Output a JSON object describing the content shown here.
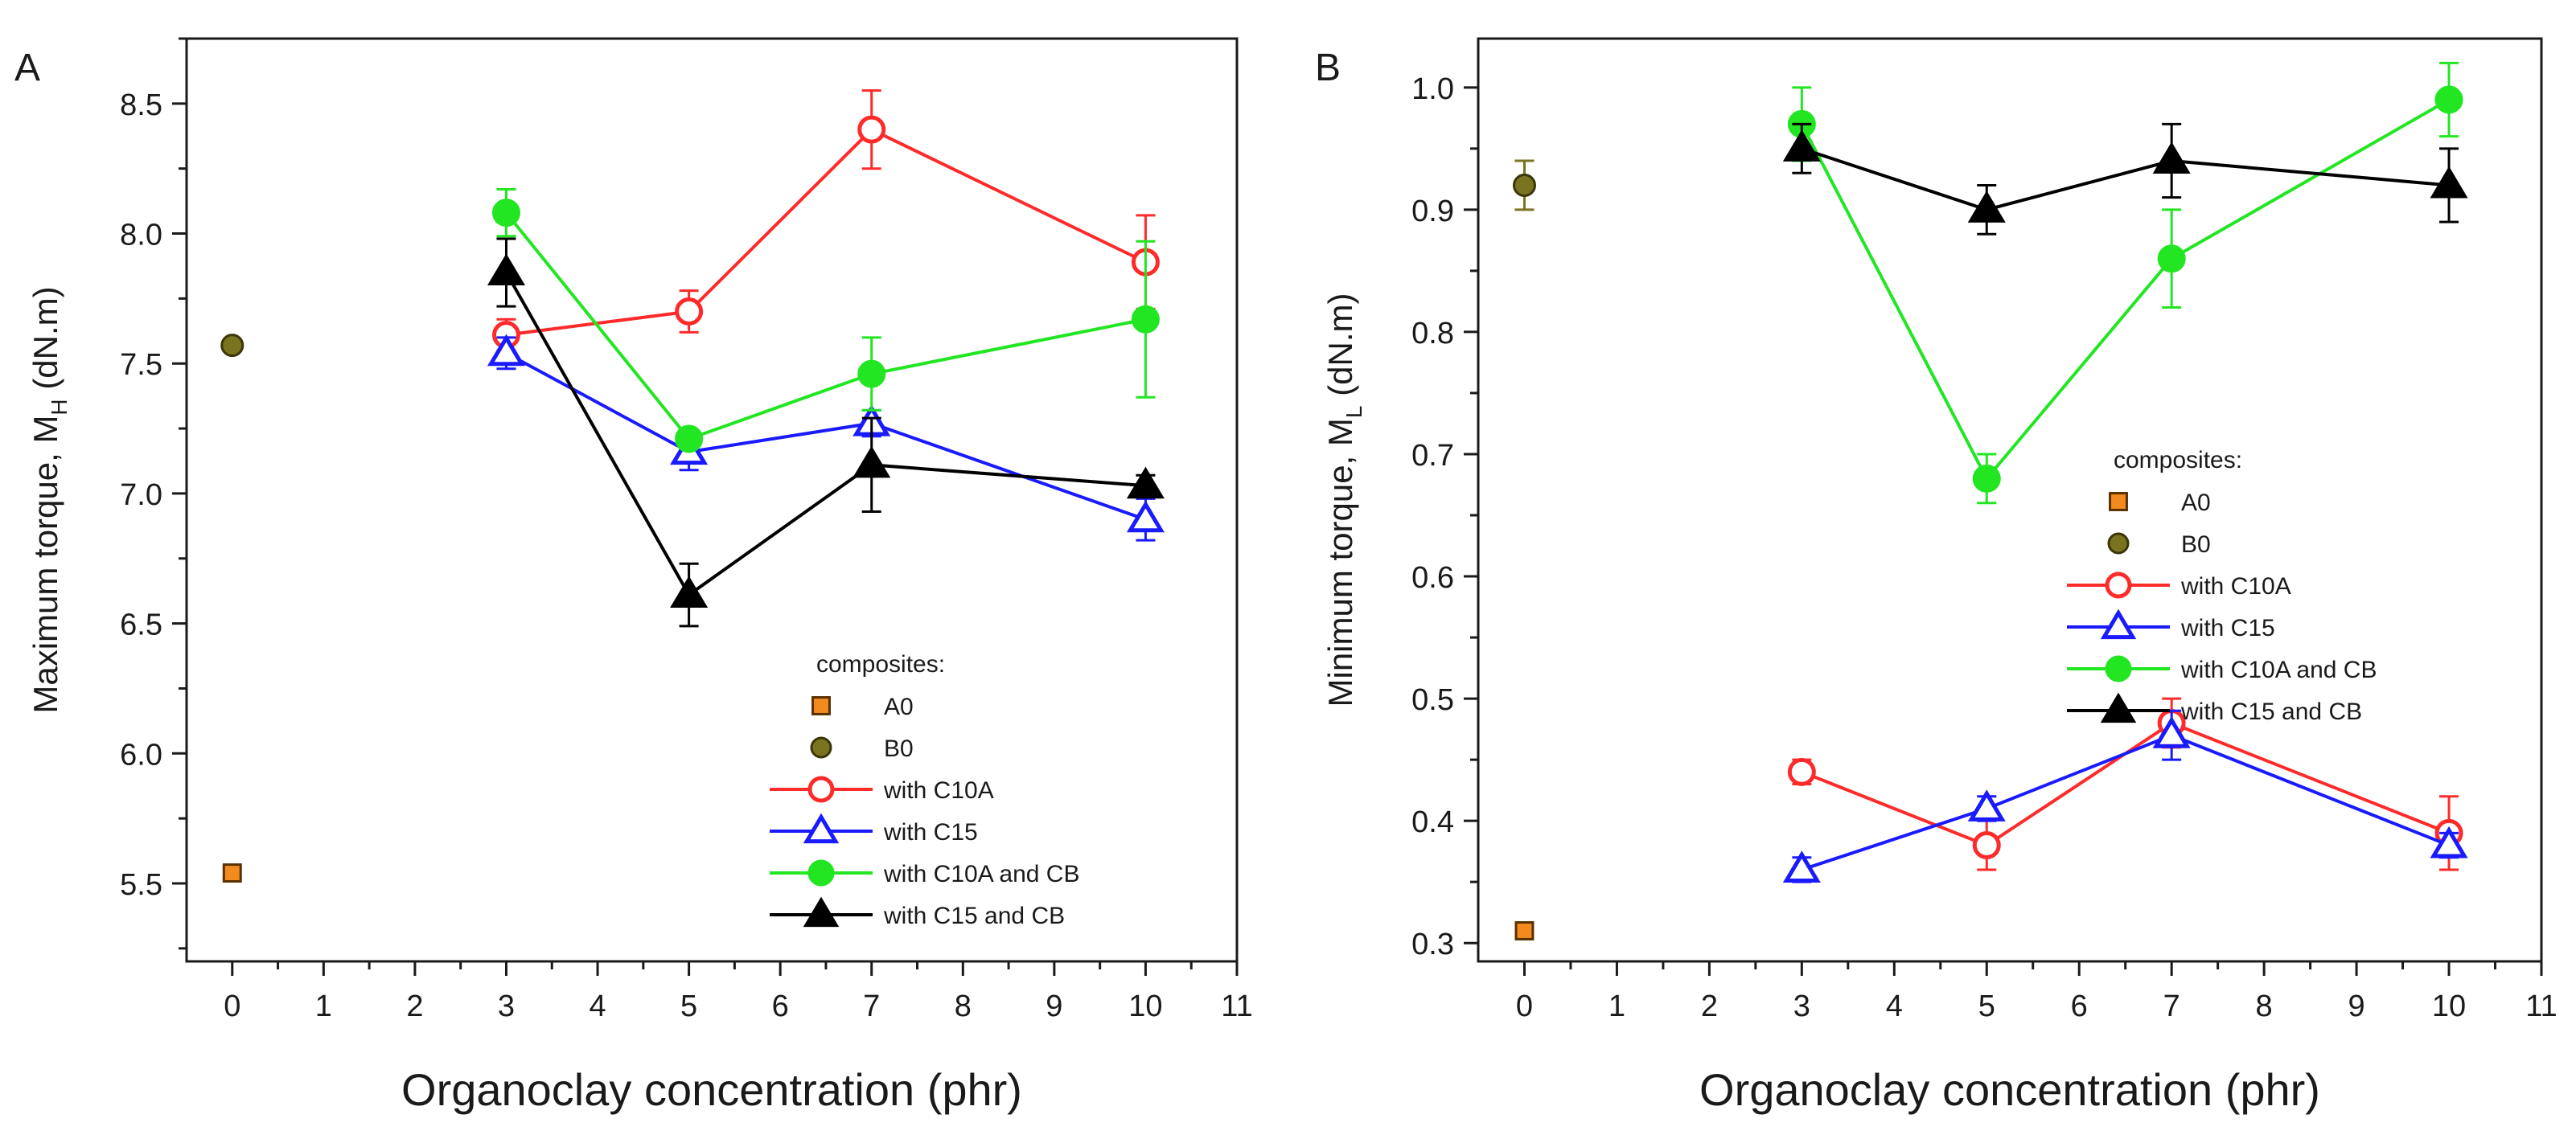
{
  "figure": {
    "description_free": true
  },
  "styles": {
    "A0": {
      "color": "#f28a1e",
      "edge": "#5a3000",
      "marker": "square",
      "filled": true
    },
    "B0": {
      "color": "#7a7420",
      "edge": "#3a3608",
      "marker": "circle",
      "filled": true
    },
    "with C10A": {
      "color": "#ff2a2a",
      "marker": "circle",
      "filled": false
    },
    "with C15": {
      "color": "#1a1aff",
      "marker": "triangle",
      "filled": false
    },
    "with C10A and CB": {
      "color": "#22e622",
      "marker": "circle",
      "filled": true
    },
    "with C15 and CB": {
      "color": "#000000",
      "marker": "triangle",
      "filled": true
    }
  },
  "chart_data": [
    {
      "panel_letter": "A",
      "type": "line",
      "xlabel": "Organoclay concentration (phr)",
      "ylabel_main": "Maximum torque, M",
      "ylabel_sub": "H",
      "ylabel_unit": " (dN.m)",
      "xlim": [
        -0.5,
        11
      ],
      "ylim": [
        5.2,
        8.75
      ],
      "xticks": [
        0,
        1,
        2,
        3,
        4,
        5,
        6,
        7,
        8,
        9,
        10,
        11
      ],
      "xtick_labels": [
        "0",
        "1",
        "2",
        "3",
        "4",
        "5",
        "6",
        "7",
        "8",
        "9",
        "10",
        "11"
      ],
      "yticks": [
        5.5,
        6.0,
        6.5,
        7.0,
        7.5,
        8.0,
        8.5
      ],
      "ytick_labels": [
        "5.5",
        "6.0",
        "6.5",
        "7.0",
        "7.5",
        "8.0",
        "8.5"
      ],
      "legend": {
        "title": "composites:",
        "entries": [
          "A0",
          "B0",
          "with C10A",
          "with C15",
          "with C10A and CB",
          "with C15 and CB"
        ],
        "placement": "bottom-right"
      },
      "series": [
        {
          "name": "A0",
          "x": [
            0
          ],
          "y": [
            5.54
          ],
          "err": [
            0.02
          ]
        },
        {
          "name": "B0",
          "x": [
            0
          ],
          "y": [
            7.57
          ],
          "err": [
            0
          ]
        },
        {
          "name": "with C10A",
          "x": [
            3,
            5,
            7,
            10
          ],
          "y": [
            7.61,
            7.7,
            8.4,
            7.89
          ],
          "err": [
            0.06,
            0.08,
            0.15,
            0.18
          ]
        },
        {
          "name": "with C15",
          "x": [
            3,
            5,
            7,
            10
          ],
          "y": [
            7.54,
            7.16,
            7.27,
            6.9
          ],
          "err": [
            0.06,
            0.07,
            0.05,
            0.08
          ]
        },
        {
          "name": "with C10A and CB",
          "x": [
            3,
            5,
            7,
            10
          ],
          "y": [
            8.08,
            7.21,
            7.46,
            7.67
          ],
          "err": [
            0.09,
            0.02,
            0.14,
            0.3
          ]
        },
        {
          "name": "with C15 and CB",
          "x": [
            3,
            5,
            7,
            10
          ],
          "y": [
            7.85,
            6.61,
            7.11,
            7.03
          ],
          "err": [
            0.13,
            0.12,
            0.18,
            0.04
          ]
        }
      ]
    },
    {
      "panel_letter": "B",
      "type": "line",
      "xlabel": "Organoclay concentration (phr)",
      "ylabel_main": "Minimum torque, M",
      "ylabel_sub": "L",
      "ylabel_unit": " (dN.m)",
      "xlim": [
        -0.5,
        11
      ],
      "ylim": [
        0.285,
        1.04
      ],
      "xticks": [
        0,
        1,
        2,
        3,
        4,
        5,
        6,
        7,
        8,
        9,
        10,
        11
      ],
      "xtick_labels": [
        "0",
        "1",
        "2",
        "3",
        "4",
        "5",
        "6",
        "7",
        "8",
        "9",
        "10",
        "11"
      ],
      "yticks": [
        0.3,
        0.4,
        0.5,
        0.6,
        0.7,
        0.8,
        0.9,
        1.0
      ],
      "ytick_labels": [
        "0.3",
        "0.4",
        "0.5",
        "0.6",
        "0.7",
        "0.8",
        "0.9",
        "1.0"
      ],
      "legend": {
        "title": "composites:",
        "entries": [
          "A0",
          "B0",
          "with C10A",
          "with C15",
          "with C10A and CB",
          "with C15 and CB"
        ],
        "placement": "center-right"
      },
      "series": [
        {
          "name": "A0",
          "x": [
            0
          ],
          "y": [
            0.31
          ],
          "err": [
            0
          ]
        },
        {
          "name": "B0",
          "x": [
            0
          ],
          "y": [
            0.92
          ],
          "err": [
            0.02
          ]
        },
        {
          "name": "with C10A",
          "x": [
            3,
            5,
            7,
            10
          ],
          "y": [
            0.44,
            0.38,
            0.48,
            0.39
          ],
          "err": [
            0.01,
            0.02,
            0.02,
            0.03
          ]
        },
        {
          "name": "with C15",
          "x": [
            3,
            5,
            7,
            10
          ],
          "y": [
            0.36,
            0.41,
            0.47,
            0.38
          ],
          "err": [
            0.01,
            0.01,
            0.02,
            0.01
          ]
        },
        {
          "name": "with C10A and CB",
          "x": [
            3,
            5,
            7,
            10
          ],
          "y": [
            0.97,
            0.68,
            0.86,
            0.99
          ],
          "err": [
            0.03,
            0.02,
            0.04,
            0.03
          ]
        },
        {
          "name": "with C15 and CB",
          "x": [
            3,
            5,
            7,
            10
          ],
          "y": [
            0.95,
            0.9,
            0.94,
            0.92
          ],
          "err": [
            0.02,
            0.02,
            0.03,
            0.03
          ]
        }
      ]
    }
  ]
}
